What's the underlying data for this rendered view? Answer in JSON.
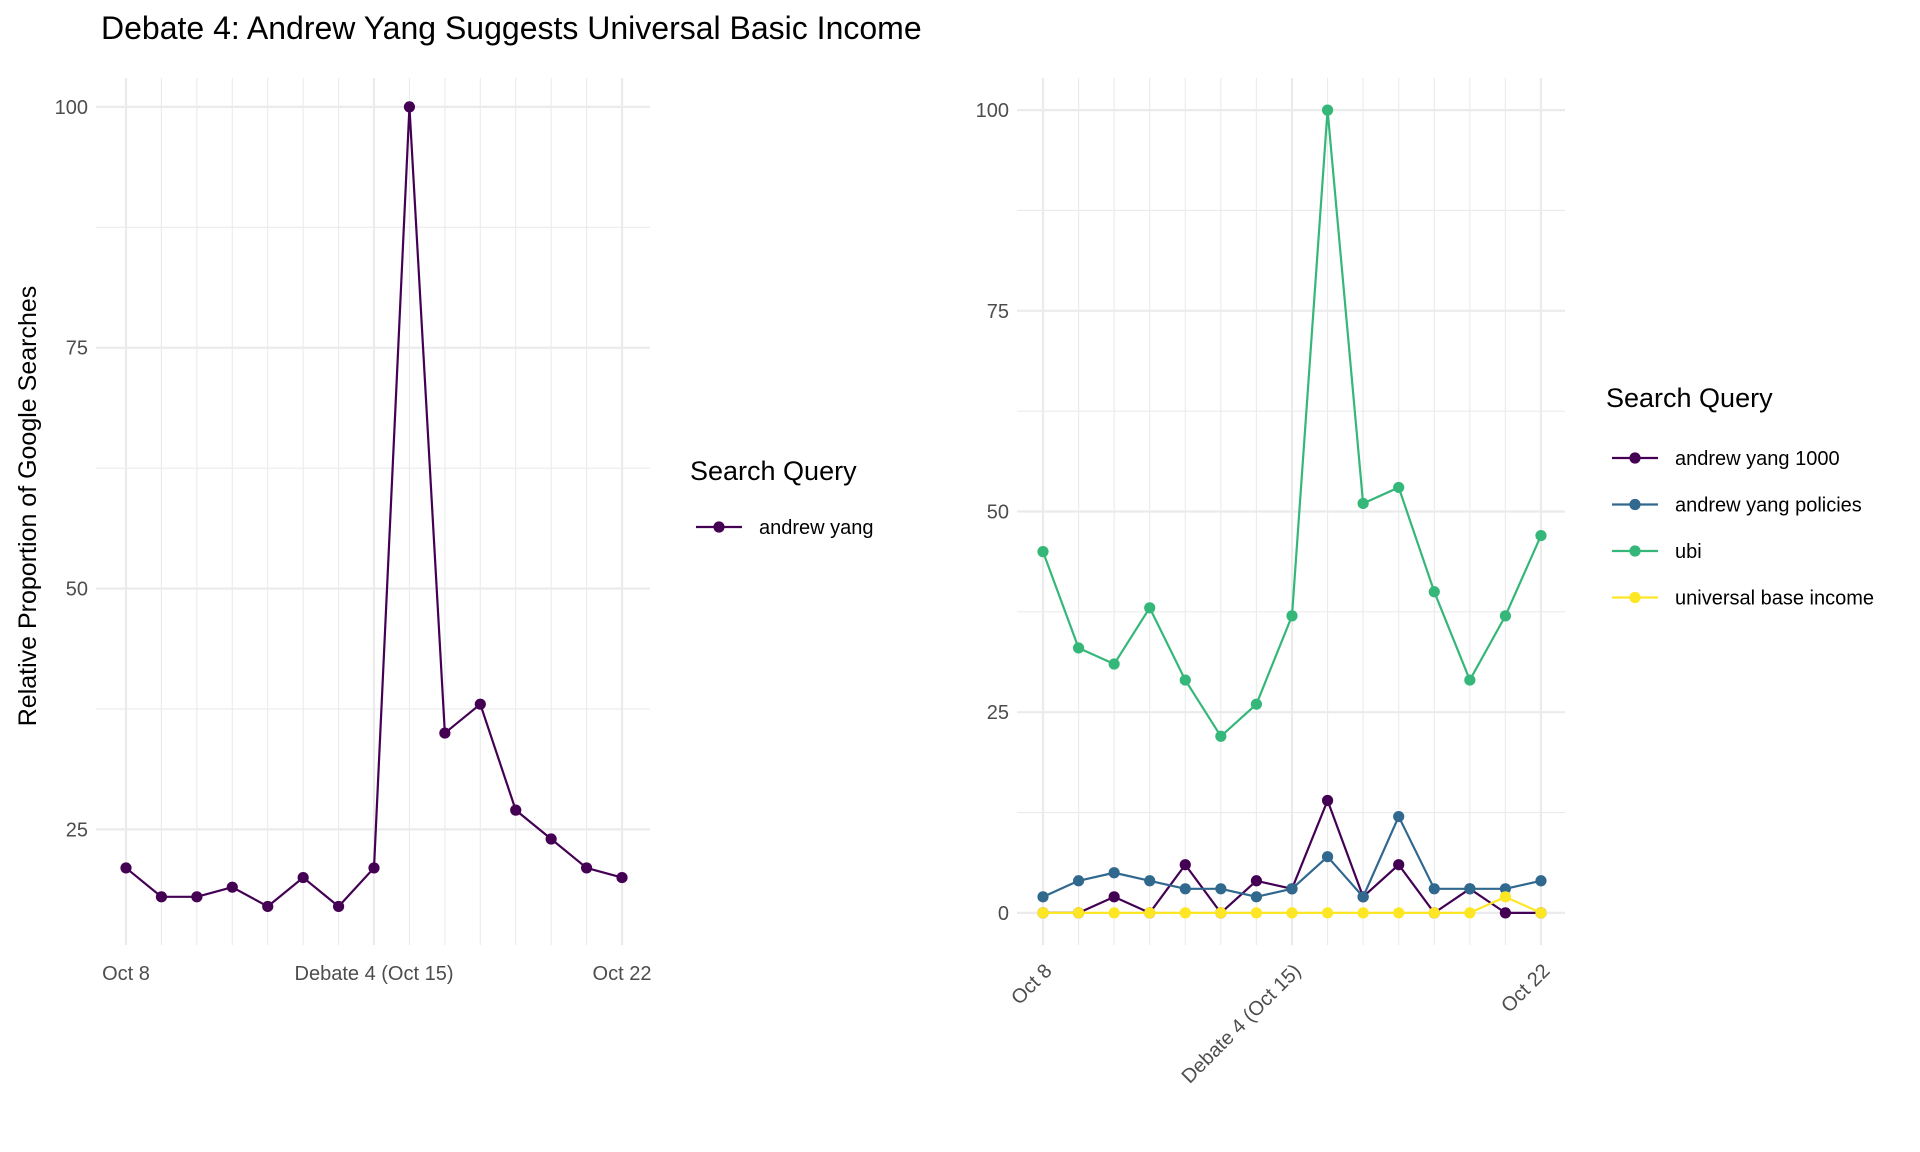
{
  "title": "Debate 4: Andrew Yang Suggests Universal Basic Income",
  "chart_data": [
    {
      "type": "line",
      "title": "Debate 4: Andrew Yang Suggests Universal Basic Income",
      "xlabel": "",
      "ylabel": "Relative Proportion of Google Searches",
      "x": [
        "Oct 8",
        "Oct 9",
        "Oct 10",
        "Oct 11",
        "Oct 12",
        "Oct 13",
        "Oct 14",
        "Oct 15",
        "Oct 16",
        "Oct 17",
        "Oct 18",
        "Oct 19",
        "Oct 20",
        "Oct 21",
        "Oct 22"
      ],
      "xticks": [
        "Oct 8",
        "Debate 4 (Oct 15)",
        "Oct 22"
      ],
      "yticks": [
        25,
        50,
        75,
        100
      ],
      "ylim": [
        13,
        103
      ],
      "grid": true,
      "legend_title": "Search Query",
      "legend_position": "right",
      "series": [
        {
          "name": "andrew yang",
          "color": "#440154",
          "values": [
            21,
            18,
            18,
            19,
            17,
            20,
            17,
            21,
            100,
            35,
            38,
            27,
            24,
            21,
            20
          ]
        }
      ]
    },
    {
      "type": "line",
      "xlabel": "",
      "ylabel": "",
      "x": [
        "Oct 8",
        "Oct 9",
        "Oct 10",
        "Oct 11",
        "Oct 12",
        "Oct 13",
        "Oct 14",
        "Oct 15",
        "Oct 16",
        "Oct 17",
        "Oct 18",
        "Oct 19",
        "Oct 20",
        "Oct 21",
        "Oct 22"
      ],
      "xticks": [
        "Oct 8",
        "Debate 4 (Oct 15)",
        "Oct 22"
      ],
      "yticks": [
        0,
        25,
        50,
        75,
        100
      ],
      "ylim": [
        -4,
        104
      ],
      "grid": true,
      "legend_title": "Search Query",
      "legend_position": "right",
      "series": [
        {
          "name": "andrew yang 1000",
          "color": "#440154",
          "values": [
            0,
            0,
            2,
            0,
            6,
            0,
            4,
            3,
            14,
            2,
            6,
            0,
            3,
            0,
            0
          ]
        },
        {
          "name": "andrew yang policies",
          "color": "#31688E",
          "values": [
            2,
            4,
            5,
            4,
            3,
            3,
            2,
            3,
            7,
            2,
            12,
            3,
            3,
            3,
            4
          ]
        },
        {
          "name": "ubi",
          "color": "#35B779",
          "values": [
            45,
            33,
            31,
            38,
            29,
            22,
            26,
            37,
            100,
            51,
            53,
            40,
            29,
            37,
            47
          ]
        },
        {
          "name": "universal base income",
          "color": "#FDE725",
          "values": [
            0,
            0,
            0,
            0,
            0,
            0,
            0,
            0,
            0,
            0,
            0,
            0,
            0,
            2,
            0
          ]
        }
      ]
    }
  ]
}
